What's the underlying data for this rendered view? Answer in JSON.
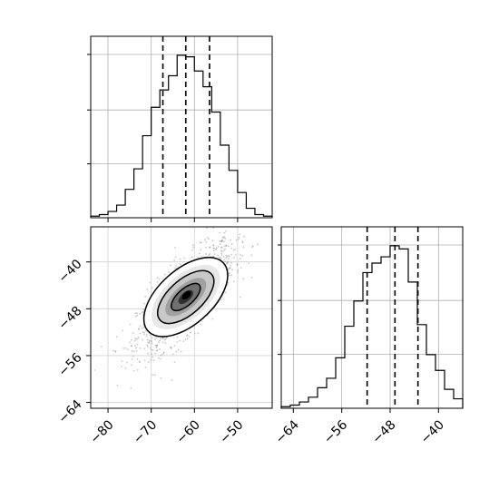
{
  "chart_data": [
    {
      "panel": "marginal-x",
      "type": "histogram",
      "title": "",
      "xlabel": "",
      "ylabel": "",
      "xlim": [
        -84,
        -42
      ],
      "ylim": [
        0,
        1.15
      ],
      "grid": true,
      "bins": [
        [
          -84,
          -82,
          0.01
        ],
        [
          -82,
          -80,
          0.02
        ],
        [
          -80,
          -78,
          0.04
        ],
        [
          -78,
          -76,
          0.08
        ],
        [
          -76,
          -74,
          0.18
        ],
        [
          -74,
          -72,
          0.31
        ],
        [
          -72,
          -70,
          0.52
        ],
        [
          -70,
          -68,
          0.7
        ],
        [
          -68,
          -66,
          0.81
        ],
        [
          -66,
          -64,
          0.9
        ],
        [
          -64,
          -62,
          1.03
        ],
        [
          -62,
          -60,
          1.02
        ],
        [
          -60,
          -58,
          0.93
        ],
        [
          -58,
          -56,
          0.83
        ],
        [
          -56,
          -54,
          0.67
        ],
        [
          -54,
          -52,
          0.46
        ],
        [
          -52,
          -50,
          0.3
        ],
        [
          -50,
          -48,
          0.16
        ],
        [
          -48,
          -46,
          0.06
        ],
        [
          -46,
          -44,
          0.02
        ],
        [
          -44,
          -42,
          0.01
        ]
      ],
      "quantile_lines": [
        -67.3,
        -62.0,
        -56.5
      ],
      "x_ticks": [
        -80,
        -70,
        -60,
        -50
      ]
    },
    {
      "panel": "joint",
      "type": "scatter-contour",
      "title": "",
      "xlabel": "",
      "ylabel": "",
      "xlim": [
        -84,
        -42
      ],
      "ylim": [
        -65,
        -34
      ],
      "center": [
        -62,
        -46
      ],
      "x_ticks": [
        -80,
        -70,
        -60,
        -50
      ],
      "y_ticks": [
        -40,
        -48,
        -56,
        -64
      ],
      "point_color": "#888888",
      "contour_color": "#000000",
      "shade_levels": [
        "#e8e8e8",
        "#c8c8c8",
        "#a0a0a0",
        "#707070",
        "#303030"
      ]
    },
    {
      "panel": "marginal-y",
      "type": "histogram",
      "title": "",
      "xlabel": "",
      "ylabel": "",
      "xlim": [
        -66,
        -36
      ],
      "ylim": [
        0,
        1.15
      ],
      "grid": true,
      "bins": [
        [
          -66,
          -64.5,
          0.01
        ],
        [
          -64.5,
          -63,
          0.02
        ],
        [
          -63,
          -61.5,
          0.04
        ],
        [
          -61.5,
          -60,
          0.07
        ],
        [
          -60,
          -58.5,
          0.13
        ],
        [
          -58.5,
          -57,
          0.19
        ],
        [
          -57,
          -55.5,
          0.32
        ],
        [
          -55.5,
          -54,
          0.52
        ],
        [
          -54,
          -52.5,
          0.68
        ],
        [
          -52.5,
          -51,
          0.86
        ],
        [
          -51,
          -49.5,
          0.92
        ],
        [
          -49.5,
          -48,
          0.96
        ],
        [
          -48,
          -46.5,
          1.03
        ],
        [
          -46.5,
          -45,
          1.01
        ],
        [
          -45,
          -43.5,
          0.8
        ],
        [
          -43.5,
          -42,
          0.53
        ],
        [
          -42,
          -40.5,
          0.34
        ],
        [
          -40.5,
          -39,
          0.24
        ],
        [
          -39,
          -37.5,
          0.12
        ],
        [
          -37.5,
          -36,
          0.06
        ]
      ],
      "quantile_lines": [
        -51.8,
        -47.2,
        -43.4
      ],
      "x_ticks": [
        -64,
        -56,
        -48,
        -40
      ]
    }
  ]
}
